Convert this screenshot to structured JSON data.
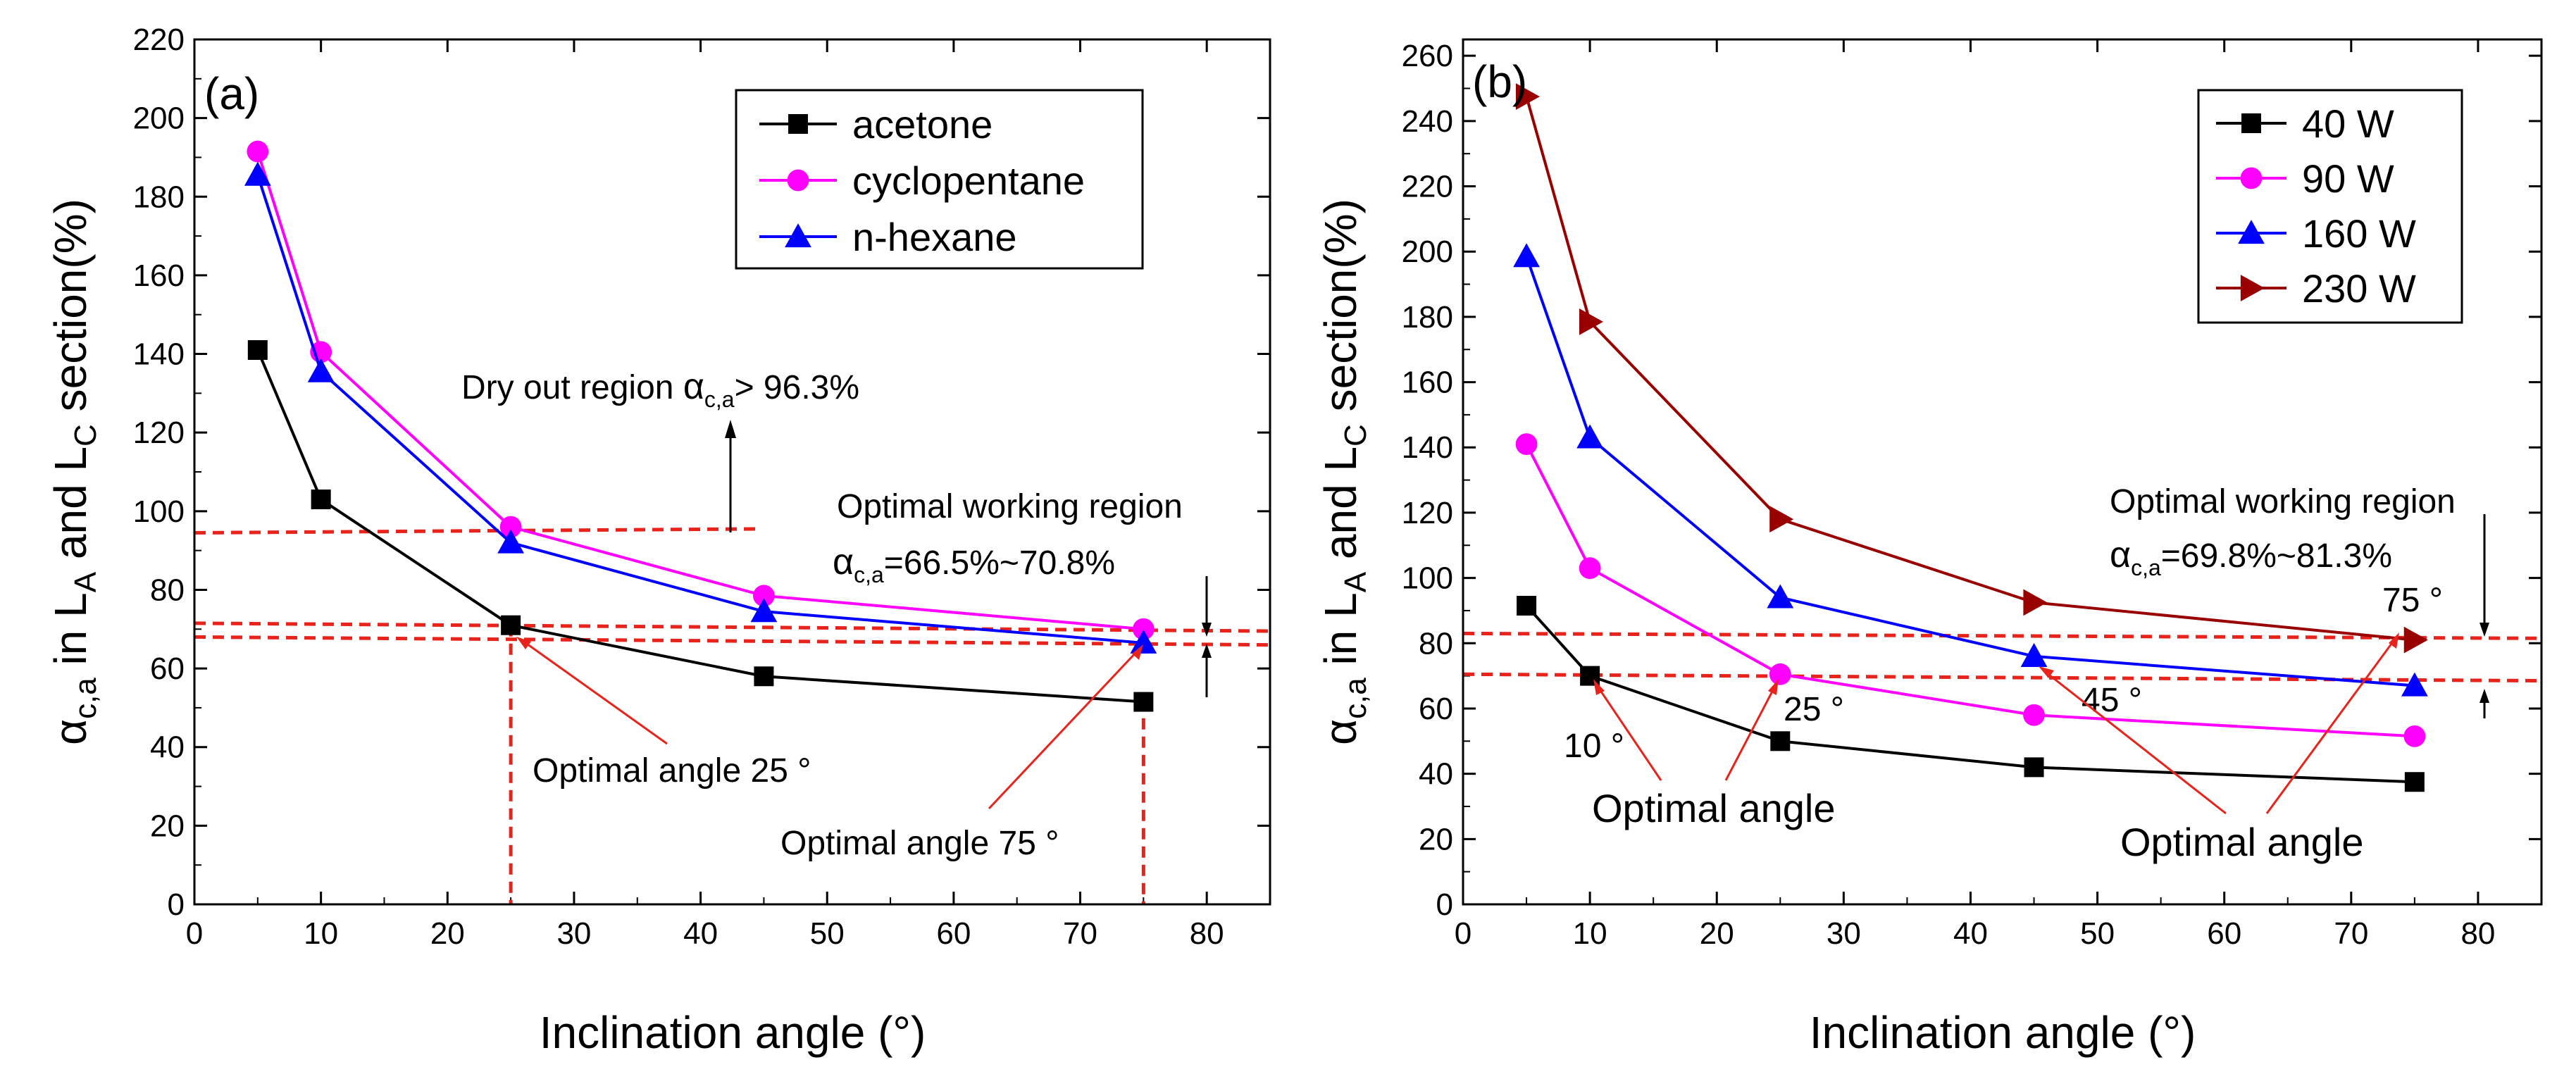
{
  "chart_data": [
    {
      "type": "line",
      "panel": "(a)",
      "xlabel": "Inclination angle (°)",
      "ylabel_parts": {
        "alpha": "α",
        "alpha_sub": "c,a",
        "mid": " in L",
        "la_sub": "A",
        "and": " and L",
        "lc_sub": "C",
        "tail": " section(%)"
      },
      "xlim": [
        0,
        85
      ],
      "ylim": [
        0,
        220
      ],
      "xticks": [
        0,
        10,
        20,
        30,
        40,
        50,
        60,
        70,
        80
      ],
      "yticks": [
        0,
        20,
        40,
        60,
        80,
        100,
        120,
        140,
        160,
        180,
        200,
        220
      ],
      "legend_position": "top-right",
      "series": [
        {
          "name": "acetone",
          "color": "#000000",
          "marker": "square",
          "x": [
            5,
            10,
            25,
            45,
            75
          ],
          "y": [
            141,
            103,
            71,
            58,
            51.5
          ]
        },
        {
          "name": "cyclopentane",
          "color": "#ff00ff",
          "marker": "circle",
          "x": [
            5,
            10,
            25,
            45,
            75
          ],
          "y": [
            191.5,
            140.5,
            96,
            78.5,
            70
          ]
        },
        {
          "name": "n-hexane",
          "color": "#0000ff",
          "marker": "triangle-up",
          "x": [
            5,
            10,
            25,
            45,
            75
          ],
          "y": [
            185.5,
            135.5,
            92,
            74.5,
            66.5
          ]
        }
      ],
      "guides": {
        "dry_out_y": 94.5,
        "optimal_upper": {
          "x": [
            0,
            85
          ],
          "y": [
            71.5,
            69.5
          ]
        },
        "optimal_lower": {
          "x": [
            0,
            85
          ],
          "y": [
            68,
            66
          ]
        },
        "vertical_x": [
          25,
          75
        ]
      },
      "annotations": {
        "dry_out_prefix": "Dry out region ",
        "alpha": "α",
        "alpha_sub": "c,a",
        "dry_out_suffix": "> 96.3%",
        "working_region": "Optimal working region",
        "working_range_suffix": "=66.5%~70.8%",
        "optimal_angle_1": "Optimal angle 25 °",
        "optimal_angle_2": "Optimal angle 75 °"
      }
    },
    {
      "type": "line",
      "panel": "(b)",
      "xlabel": "Inclination angle (°)",
      "ylabel_parts": {
        "alpha": "α",
        "alpha_sub": "c,a",
        "mid": " in L",
        "la_sub": "A",
        "and": " and L",
        "lc_sub": "C",
        "tail": " section(%)"
      },
      "xlim": [
        0,
        85
      ],
      "ylim": [
        0,
        265
      ],
      "xticks": [
        0,
        10,
        20,
        30,
        40,
        50,
        60,
        70,
        80
      ],
      "yticks": [
        0,
        20,
        40,
        60,
        80,
        100,
        120,
        140,
        160,
        180,
        200,
        220,
        240,
        260
      ],
      "legend_position": "top-right",
      "series": [
        {
          "name": "40 W",
          "color": "#000000",
          "marker": "square",
          "x": [
            5,
            10,
            25,
            45,
            75
          ],
          "y": [
            91.5,
            70,
            50,
            42,
            37.5
          ]
        },
        {
          "name": "90 W",
          "color": "#ff00ff",
          "marker": "circle",
          "x": [
            5,
            10,
            25,
            45,
            75
          ],
          "y": [
            141,
            103,
            70.5,
            58,
            51.5
          ]
        },
        {
          "name": "160 W",
          "color": "#0000ff",
          "marker": "triangle-up",
          "x": [
            5,
            10,
            25,
            45,
            75
          ],
          "y": [
            198.5,
            143,
            94,
            76,
            67
          ]
        },
        {
          "name": "230 W",
          "color": "#990000",
          "marker": "triangle-right",
          "x": [
            5,
            10,
            25,
            45,
            75
          ],
          "y": [
            247.5,
            178.5,
            118,
            92.5,
            81
          ]
        }
      ],
      "guides": {
        "optimal_upper": {
          "x": [
            0,
            85
          ],
          "y": [
            83,
            81.5
          ]
        },
        "optimal_lower": {
          "x": [
            0,
            85
          ],
          "y": [
            70.5,
            68.5
          ]
        }
      },
      "annotations": {
        "working_region": "Optimal working region",
        "alpha": "α",
        "alpha_sub": "c,a",
        "working_range_suffix": "=69.8%~81.3%",
        "angle_10": "10 °",
        "angle_25": "25 °",
        "angle_45": "45 °",
        "angle_75": "75 °",
        "optimal_angle_left": "Optimal angle",
        "optimal_angle_right": "Optimal angle"
      }
    }
  ]
}
